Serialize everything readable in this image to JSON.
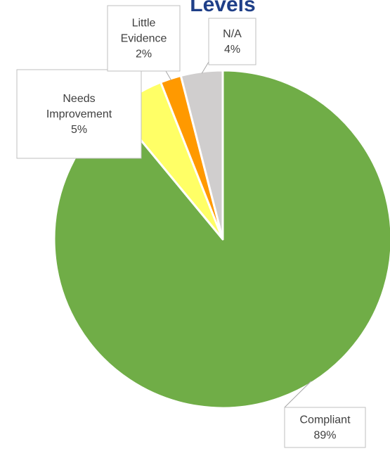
{
  "chart_data": {
    "type": "pie",
    "title": "Levels",
    "categories": [
      "Compliant",
      "Needs Improvement",
      "Little Evidence",
      "N/A"
    ],
    "values": [
      89,
      5,
      2,
      4
    ],
    "value_suffix": "%",
    "colors": [
      "#70ad47",
      "#ffff66",
      "#ff9900",
      "#d0cece"
    ],
    "slice_order_clockwise_from_top": [
      "Compliant",
      "Needs Improvement",
      "Little Evidence",
      "N/A"
    ],
    "data_labels": [
      {
        "lines": [
          "Compliant"
        ],
        "value": "89%"
      },
      {
        "lines": [
          "Needs",
          "Improvement"
        ],
        "value": "5%"
      },
      {
        "lines": [
          "Little",
          "Evidence"
        ],
        "value": "2%"
      },
      {
        "lines": [
          "N/A"
        ],
        "value": "4%"
      }
    ],
    "legend": "none"
  }
}
